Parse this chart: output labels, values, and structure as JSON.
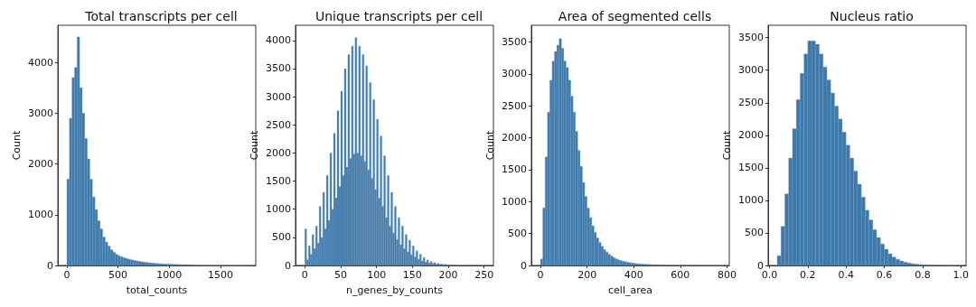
{
  "chart_data": [
    {
      "type": "histogram",
      "title": "Total transcripts per cell",
      "xlabel": "total_counts",
      "ylabel": "Count",
      "color": "#3d7aab",
      "bins": [
        0,
        25,
        50,
        75,
        100,
        125,
        150,
        175,
        200,
        225,
        250,
        275,
        300,
        325,
        350,
        375,
        400,
        425,
        450,
        475,
        500,
        525,
        550,
        575,
        600,
        625,
        650,
        675,
        700,
        725,
        750,
        775,
        800,
        825,
        850,
        875,
        900,
        925,
        950,
        975,
        1000,
        1025,
        1050,
        1075,
        1100,
        1125,
        1150,
        1175,
        1200,
        1225,
        1250,
        1275,
        1300,
        1325,
        1350,
        1375,
        1400,
        1425,
        1450,
        1475,
        1500,
        1525,
        1550,
        1575,
        1600,
        1625,
        1650,
        1675,
        1700,
        1725,
        1750,
        1775,
        1800
      ],
      "values": [
        1700,
        2900,
        3700,
        3900,
        4500,
        3500,
        3000,
        2500,
        2100,
        1700,
        1350,
        1100,
        880,
        720,
        560,
        460,
        380,
        310,
        260,
        220,
        190,
        170,
        150,
        135,
        120,
        110,
        100,
        90,
        80,
        72,
        65,
        58,
        52,
        47,
        42,
        38,
        35,
        32,
        30,
        28,
        26,
        24,
        22,
        20,
        19,
        18,
        16,
        15,
        14,
        10,
        6,
        5,
        4,
        4,
        3,
        3,
        3,
        3,
        2,
        2,
        2,
        2,
        2,
        2,
        1,
        1,
        1,
        1,
        1,
        1,
        1,
        1
      ],
      "xlim": [
        -88,
        1845
      ],
      "ylim": [
        0,
        4730
      ],
      "xticks": [
        0,
        500,
        1000,
        1500
      ],
      "yticks": [
        0,
        1000,
        2000,
        3000,
        4000
      ]
    },
    {
      "type": "histogram",
      "title": "Unique transcripts per cell",
      "xlabel": "n_genes_by_counts",
      "ylabel": "Count",
      "color": "#3d7aab",
      "bins": [
        0,
        2.5,
        5,
        7.5,
        10,
        12.5,
        15,
        17.5,
        20,
        22.5,
        25,
        27.5,
        30,
        32.5,
        35,
        37.5,
        40,
        42.5,
        45,
        47.5,
        50,
        52.5,
        55,
        57.5,
        60,
        62.5,
        65,
        67.5,
        70,
        72.5,
        75,
        77.5,
        80,
        82.5,
        85,
        87.5,
        90,
        92.5,
        95,
        97.5,
        100,
        102.5,
        105,
        107.5,
        110,
        112.5,
        115,
        117.5,
        120,
        122.5,
        125,
        127.5,
        130,
        132.5,
        135,
        137.5,
        140,
        142.5,
        145,
        147.5,
        150,
        152.5,
        155,
        157.5,
        160,
        162.5,
        165,
        167.5,
        170,
        172.5,
        175,
        177.5,
        180,
        182.5,
        185,
        187.5,
        190,
        192.5,
        195,
        197.5,
        200,
        202.5,
        205,
        207.5,
        210,
        212.5,
        215
      ],
      "values": [
        650,
        100,
        350,
        200,
        550,
        300,
        700,
        400,
        1050,
        500,
        1300,
        650,
        1600,
        800,
        2000,
        1000,
        2350,
        1200,
        2750,
        1400,
        3100,
        1600,
        3500,
        1750,
        3750,
        1900,
        3900,
        1980,
        4050,
        2000,
        3900,
        1950,
        3750,
        1850,
        3550,
        1700,
        3250,
        1550,
        2950,
        1350,
        2600,
        1200,
        2300,
        1050,
        1950,
        850,
        1600,
        700,
        1300,
        580,
        1050,
        460,
        850,
        370,
        700,
        300,
        550,
        240,
        450,
        190,
        350,
        150,
        260,
        110,
        200,
        80,
        140,
        60,
        100,
        45,
        70,
        35,
        50,
        25,
        35,
        20,
        25,
        15,
        20,
        10,
        15,
        8,
        12,
        6,
        8,
        4
      ],
      "xlim": [
        -13,
        263
      ],
      "ylim": [
        0,
        4270
      ],
      "xticks": [
        0,
        50,
        100,
        150,
        200,
        250
      ],
      "yticks": [
        0,
        500,
        1000,
        1500,
        2000,
        2500,
        3000,
        3500,
        4000
      ]
    },
    {
      "type": "histogram",
      "title": "Area of segmented cells",
      "xlabel": "cell_area",
      "ylabel": "Count",
      "color": "#3d7aab",
      "bins": [
        0,
        10,
        20,
        30,
        40,
        50,
        60,
        70,
        80,
        90,
        100,
        110,
        120,
        130,
        140,
        150,
        160,
        170,
        180,
        190,
        200,
        210,
        220,
        230,
        240,
        250,
        260,
        270,
        280,
        290,
        300,
        310,
        320,
        330,
        340,
        350,
        360,
        370,
        380,
        390,
        400,
        410,
        420,
        430,
        440,
        450,
        460,
        470,
        480,
        490,
        500,
        510,
        520,
        530,
        540,
        550,
        560,
        570,
        580,
        590,
        600,
        610,
        620,
        630,
        640,
        650,
        660,
        670,
        680,
        690,
        700,
        710,
        720,
        730,
        740,
        750,
        760,
        770,
        780
      ],
      "values": [
        100,
        900,
        1700,
        2400,
        2900,
        3200,
        3350,
        3450,
        3550,
        3400,
        3200,
        3100,
        2900,
        2650,
        2400,
        2100,
        1800,
        1550,
        1300,
        1080,
        900,
        750,
        620,
        520,
        430,
        360,
        300,
        250,
        210,
        175,
        150,
        125,
        105,
        90,
        78,
        67,
        58,
        50,
        44,
        38,
        33,
        29,
        26,
        23,
        20,
        18,
        16,
        15,
        14,
        13,
        12,
        11,
        10,
        10,
        9,
        9,
        8,
        8,
        7,
        7,
        6,
        6,
        5,
        5,
        5,
        4,
        4,
        3,
        3,
        3,
        3,
        2,
        2,
        2,
        2,
        2,
        2,
        2
      ],
      "xlim": [
        -39,
        810
      ],
      "ylim": [
        0,
        3760
      ],
      "xticks": [
        0,
        200,
        400,
        600,
        800
      ],
      "yticks": [
        0,
        500,
        1000,
        1500,
        2000,
        2500,
        3000,
        3500
      ]
    },
    {
      "type": "histogram",
      "title": "Nucleus ratio",
      "ylabel": "Count",
      "color": "#3d7aab",
      "bins": [
        0.04,
        0.06,
        0.08,
        0.1,
        0.12,
        0.14,
        0.16,
        0.18,
        0.2,
        0.22,
        0.24,
        0.26,
        0.28,
        0.3,
        0.32,
        0.34,
        0.36,
        0.38,
        0.4,
        0.42,
        0.44,
        0.46,
        0.48,
        0.5,
        0.52,
        0.54,
        0.56,
        0.58,
        0.6,
        0.62,
        0.64,
        0.66,
        0.68,
        0.7,
        0.72,
        0.74,
        0.76,
        0.78,
        0.8,
        0.82,
        0.84,
        0.86,
        0.88,
        0.9,
        0.92,
        0.94,
        0.96,
        0.98
      ],
      "values": [
        150,
        600,
        1100,
        1650,
        2100,
        2550,
        2950,
        3250,
        3450,
        3450,
        3400,
        3250,
        3050,
        2850,
        2650,
        2450,
        2250,
        2050,
        1850,
        1650,
        1450,
        1250,
        1050,
        850,
        700,
        550,
        430,
        330,
        250,
        180,
        130,
        95,
        70,
        50,
        38,
        28,
        20,
        15,
        12,
        10,
        8,
        6,
        5,
        4,
        3,
        3,
        2
      ],
      "xlim": [
        -0.007,
        1.027
      ],
      "ylim": [
        0,
        3690
      ],
      "xticks": [
        {
          "value": 0,
          "label": "0.0"
        },
        0.2,
        0.4,
        0.6,
        0.8,
        {
          "value": 1,
          "label": "1.0"
        }
      ],
      "yticks": [
        0,
        500,
        1000,
        1500,
        2000,
        2500,
        3000,
        3500
      ]
    }
  ]
}
